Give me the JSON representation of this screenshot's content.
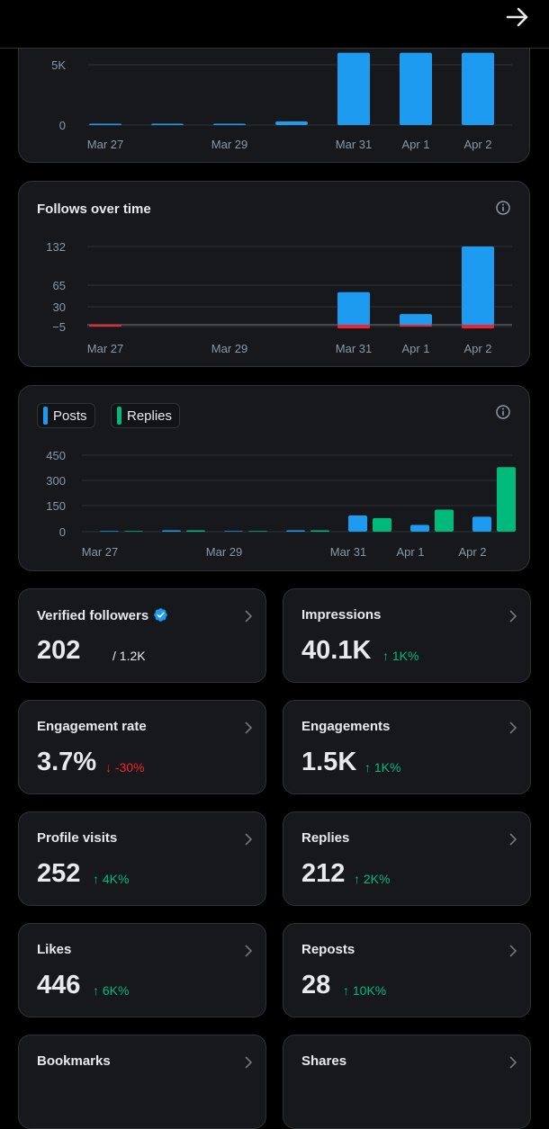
{
  "colors": {
    "blue": "#1d9bf0",
    "green": "#00ba7c",
    "red": "#f4212e",
    "grid": "#2f3336"
  },
  "icons": {
    "back": "arrow-right-icon",
    "info": "info-icon",
    "verified": "verified-badge-icon",
    "chevron": "chevron-right-icon"
  },
  "chart_data": [
    {
      "type": "bar",
      "title": "",
      "yticks": [
        "5K",
        "0"
      ],
      "x_labels": [
        "Mar 27",
        "Mar 29",
        "Mar 31",
        "Apr 1",
        "Apr 2"
      ],
      "series": [
        {
          "values": [
            80,
            80,
            80,
            300,
            6000,
            6000,
            6000
          ]
        }
      ],
      "ylim": [
        0,
        6000
      ]
    },
    {
      "type": "bar",
      "title": "Follows over time",
      "yticks": [
        "132",
        "65",
        "30",
        "−5"
      ],
      "x_labels": [
        "Mar 27",
        "Mar 29",
        "Mar 31",
        "Apr 1",
        "Apr 2"
      ],
      "series": [
        {
          "values": [
            0,
            0,
            0,
            0,
            55,
            18,
            132
          ]
        },
        {
          "values": [
            -2,
            0,
            0,
            0,
            -5,
            -2,
            -5
          ]
        }
      ],
      "ylim": [
        -5,
        132
      ]
    },
    {
      "type": "bar",
      "yticks": [
        "450",
        "300",
        "150",
        "0"
      ],
      "x_labels": [
        "Mar 27",
        "Mar 29",
        "Mar 31",
        "Apr 1",
        "Apr 2"
      ],
      "series": [
        {
          "name": "Posts",
          "values": [
            0,
            2,
            0,
            1,
            95,
            40,
            88
          ]
        },
        {
          "name": "Replies",
          "values": [
            0,
            1,
            0,
            2,
            80,
            130,
            380
          ]
        }
      ],
      "ylim": [
        0,
        450
      ]
    }
  ],
  "legend": {
    "posts": "Posts",
    "replies": "Replies"
  },
  "stats": [
    {
      "label": "Verified followers",
      "value": "202",
      "sub": "/ 1.2K"
    },
    {
      "label": "Impressions",
      "value": "40.1K",
      "delta": "↑ 1K%",
      "dir": "up"
    },
    {
      "label": "Engagement rate",
      "value": "3.7%",
      "delta": "↓ -30%",
      "dir": "down"
    },
    {
      "label": "Engagements",
      "value": "1.5K",
      "delta": "↑ 1K%",
      "dir": "up"
    },
    {
      "label": "Profile visits",
      "value": "252",
      "delta": "↑ 4K%",
      "dir": "up"
    },
    {
      "label": "Replies",
      "value": "212",
      "delta": "↑ 2K%",
      "dir": "up"
    },
    {
      "label": "Likes",
      "value": "446",
      "delta": "↑ 6K%",
      "dir": "up"
    },
    {
      "label": "Reposts",
      "value": "28",
      "delta": "↑ 10K%",
      "dir": "up"
    },
    {
      "label": "Bookmarks",
      "value": "",
      "delta": ""
    },
    {
      "label": "Shares",
      "value": "",
      "delta": ""
    }
  ]
}
